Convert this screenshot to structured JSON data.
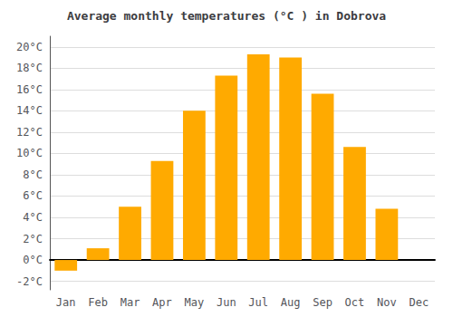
{
  "chart_data": {
    "type": "bar",
    "title": "Average monthly temperatures (°C ) in Dobrova",
    "categories": [
      "Jan",
      "Feb",
      "Mar",
      "Apr",
      "May",
      "Jun",
      "Jul",
      "Aug",
      "Sep",
      "Oct",
      "Nov",
      "Dec"
    ],
    "values": [
      -1.0,
      1.1,
      5.0,
      9.3,
      14.0,
      17.3,
      19.3,
      19.0,
      15.6,
      10.6,
      4.8,
      0.0
    ],
    "color": "#FFAA00",
    "ylim": [
      -2.8,
      21.0
    ],
    "yticks": [
      {
        "value": -2,
        "label": "-2°C"
      },
      {
        "value": 0,
        "label": "0°C"
      },
      {
        "value": 2,
        "label": "2°C"
      },
      {
        "value": 4,
        "label": "4°C"
      },
      {
        "value": 6,
        "label": "6°C"
      },
      {
        "value": 8,
        "label": "8°C"
      },
      {
        "value": 10,
        "label": "10°C"
      },
      {
        "value": 12,
        "label": "12°C"
      },
      {
        "value": 14,
        "label": "14°C"
      },
      {
        "value": 16,
        "label": "16°C"
      },
      {
        "value": 18,
        "label": "18°C"
      },
      {
        "value": 20,
        "label": "20°C"
      }
    ],
    "grid": true
  }
}
